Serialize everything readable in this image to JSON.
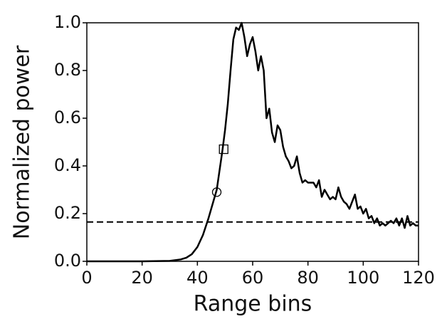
{
  "chart_data": {
    "type": "line",
    "xlabel": "Range bins",
    "ylabel": "Normalized power",
    "xlim": [
      0,
      120
    ],
    "ylim": [
      0,
      1
    ],
    "xticks": [
      0,
      20,
      40,
      60,
      80,
      100,
      120
    ],
    "yticks": [
      {
        "value": 0,
        "label": "0.0"
      },
      0.2,
      0.4,
      0.6,
      0.8,
      {
        "value": 1,
        "label": "1.0"
      }
    ],
    "x": [
      0,
      10,
      20,
      30,
      34,
      36,
      38,
      40,
      42,
      44,
      46,
      47,
      48,
      49,
      50,
      51,
      52,
      53,
      54,
      55,
      56,
      57,
      58,
      59,
      60,
      61,
      62,
      63,
      64,
      65,
      66,
      67,
      68,
      69,
      70,
      71,
      72,
      73,
      74,
      75,
      76,
      77,
      78,
      79,
      80,
      82,
      83,
      84,
      85,
      86,
      87,
      88,
      89,
      90,
      91,
      92,
      93,
      94,
      95,
      96,
      97,
      98,
      99,
      100,
      101,
      102,
      103,
      104,
      105,
      106,
      107,
      108,
      110,
      111,
      112,
      113,
      114,
      115,
      116,
      117,
      118,
      119,
      120
    ],
    "series": [
      {
        "color": "#000000",
        "values": [
          0,
          0,
          0,
          0.002,
          0.008,
          0.015,
          0.03,
          0.06,
          0.11,
          0.18,
          0.26,
          0.3,
          0.38,
          0.46,
          0.55,
          0.66,
          0.8,
          0.93,
          0.98,
          0.97,
          1.0,
          0.94,
          0.86,
          0.91,
          0.94,
          0.88,
          0.8,
          0.86,
          0.8,
          0.6,
          0.64,
          0.54,
          0.5,
          0.57,
          0.55,
          0.48,
          0.44,
          0.42,
          0.39,
          0.4,
          0.44,
          0.37,
          0.33,
          0.34,
          0.33,
          0.33,
          0.31,
          0.34,
          0.27,
          0.3,
          0.28,
          0.26,
          0.27,
          0.26,
          0.31,
          0.27,
          0.25,
          0.24,
          0.22,
          0.25,
          0.28,
          0.22,
          0.23,
          0.2,
          0.22,
          0.18,
          0.19,
          0.16,
          0.18,
          0.15,
          0.16,
          0.15,
          0.17,
          0.16,
          0.18,
          0.15,
          0.18,
          0.14,
          0.19,
          0.15,
          0.16,
          0.15,
          0.15
        ]
      }
    ],
    "hline": {
      "value": 0.165,
      "color": "#000000",
      "style": "dashed"
    },
    "markers": [
      {
        "shape": "square",
        "x": 49.5,
        "y": 0.47
      },
      {
        "shape": "circle",
        "x": 47,
        "y": 0.29
      }
    ]
  }
}
